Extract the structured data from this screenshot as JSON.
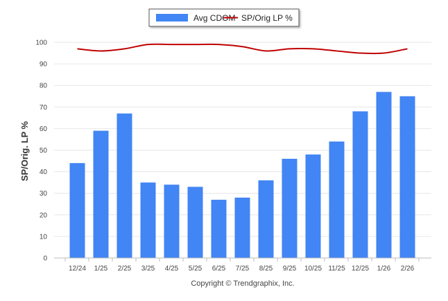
{
  "chart_data": {
    "type": "bar",
    "categories": [
      "12/24",
      "1/25",
      "2/25",
      "3/25",
      "4/25",
      "5/25",
      "6/25",
      "7/25",
      "8/25",
      "9/25",
      "10/25",
      "11/25",
      "12/25",
      "1/26",
      "2/26"
    ],
    "series": [
      {
        "name": "Avg CDOM",
        "type": "bar",
        "color": "#4285f4",
        "values": [
          44,
          59,
          67,
          35,
          34,
          33,
          27,
          28,
          36,
          46,
          48,
          54,
          68,
          77,
          75
        ]
      },
      {
        "name": "SP/Orig LP %",
        "type": "line",
        "color": "#c00000",
        "values": [
          97,
          96,
          97,
          99,
          99,
          99,
          99,
          98,
          96,
          97,
          97,
          96,
          95,
          95,
          97
        ]
      }
    ],
    "ylabel": "SP/Orig. LP %",
    "ylim": [
      0,
      100
    ],
    "yticks": [
      0,
      10,
      20,
      30,
      40,
      50,
      60,
      70,
      80,
      90,
      100
    ],
    "grid": true,
    "legend_position": "top-center",
    "credit": "Copyright © Trendgraphix, Inc."
  }
}
